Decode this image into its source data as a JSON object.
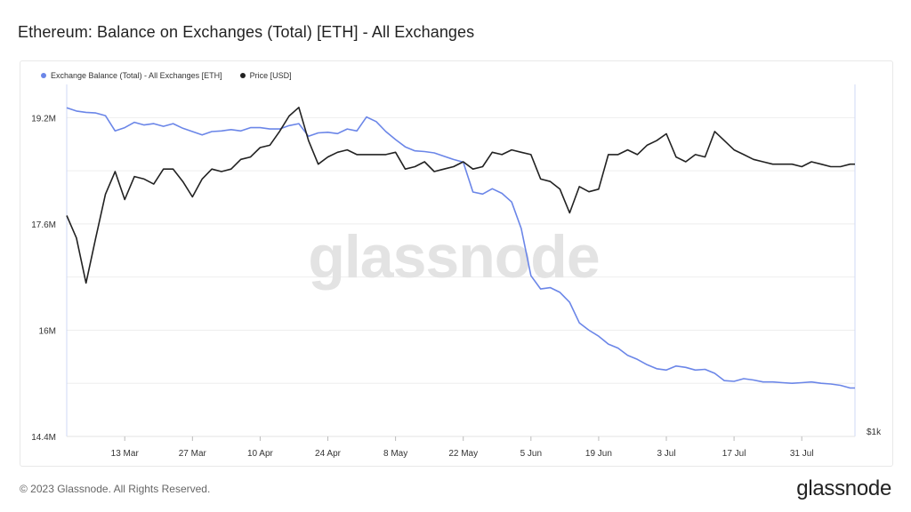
{
  "title": "Ethereum: Balance on Exchanges (Total) [ETH] - All Exchanges",
  "watermark": "glassnode",
  "footer": {
    "copyright": "© 2023 Glassnode. All Rights Reserved.",
    "logo": "glassnode"
  },
  "colors": {
    "balance": "#6b86e8",
    "price": "#222222",
    "grid": "#eeeeee"
  },
  "chart_data": {
    "type": "line",
    "title": "Ethereum: Balance on Exchanges (Total) [ETH] - All Exchanges",
    "legend_position": "top-left",
    "grid": true,
    "x_range": [
      "2023-03-01",
      "2023-08-11"
    ],
    "x_ticks": [
      "13 Mar",
      "27 Mar",
      "10 Apr",
      "24 Apr",
      "8 May",
      "22 May",
      "5 Jun",
      "19 Jun",
      "3 Jul",
      "17 Jul",
      "31 Jul"
    ],
    "y_left": {
      "ticks": [
        "19.2M",
        "17.6M",
        "16M",
        "14.4M"
      ],
      "tick_values": [
        19200000,
        17600000,
        16000000,
        14400000
      ],
      "range": [
        14400000,
        19700000
      ]
    },
    "y_right": {
      "ticks": [
        "$1k"
      ],
      "tick_values": [
        1000
      ],
      "scale": "log",
      "range": [
        1000,
        2200
      ]
    },
    "series": [
      {
        "name": "Exchange Balance (Total) - All Exchanges [ETH]",
        "axis": "left",
        "x": [
          "2023-03-01",
          "2023-03-03",
          "2023-03-05",
          "2023-03-07",
          "2023-03-09",
          "2023-03-11",
          "2023-03-13",
          "2023-03-15",
          "2023-03-17",
          "2023-03-19",
          "2023-03-21",
          "2023-03-23",
          "2023-03-25",
          "2023-03-27",
          "2023-03-29",
          "2023-03-31",
          "2023-04-02",
          "2023-04-04",
          "2023-04-06",
          "2023-04-08",
          "2023-04-10",
          "2023-04-12",
          "2023-04-14",
          "2023-04-16",
          "2023-04-18",
          "2023-04-20",
          "2023-04-22",
          "2023-04-24",
          "2023-04-26",
          "2023-04-28",
          "2023-04-30",
          "2023-05-02",
          "2023-05-04",
          "2023-05-06",
          "2023-05-08",
          "2023-05-10",
          "2023-05-12",
          "2023-05-14",
          "2023-05-16",
          "2023-05-18",
          "2023-05-20",
          "2023-05-22",
          "2023-05-24",
          "2023-05-26",
          "2023-05-28",
          "2023-05-30",
          "2023-06-01",
          "2023-06-03",
          "2023-06-05",
          "2023-06-07",
          "2023-06-09",
          "2023-06-11",
          "2023-06-13",
          "2023-06-15",
          "2023-06-17",
          "2023-06-19",
          "2023-06-21",
          "2023-06-23",
          "2023-06-25",
          "2023-06-27",
          "2023-06-29",
          "2023-07-01",
          "2023-07-03",
          "2023-07-05",
          "2023-07-07",
          "2023-07-09",
          "2023-07-11",
          "2023-07-13",
          "2023-07-15",
          "2023-07-17",
          "2023-07-19",
          "2023-07-21",
          "2023-07-23",
          "2023-07-25",
          "2023-07-27",
          "2023-07-29",
          "2023-07-31",
          "2023-08-02",
          "2023-08-04",
          "2023-08-06",
          "2023-08-08",
          "2023-08-10",
          "2023-08-11"
        ],
        "values": [
          19350000,
          19300000,
          19280000,
          19270000,
          19230000,
          19000000,
          19050000,
          19130000,
          19090000,
          19110000,
          19070000,
          19110000,
          19040000,
          18990000,
          18940000,
          18990000,
          19000000,
          19020000,
          19000000,
          19050000,
          19050000,
          19030000,
          19030000,
          19080000,
          19110000,
          18920000,
          18970000,
          18980000,
          18960000,
          19030000,
          19000000,
          19210000,
          19140000,
          18990000,
          18870000,
          18760000,
          18700000,
          18690000,
          18670000,
          18620000,
          18570000,
          18530000,
          18080000,
          18050000,
          18130000,
          18060000,
          17930000,
          17530000,
          16820000,
          16620000,
          16640000,
          16570000,
          16420000,
          16110000,
          16000000,
          15910000,
          15790000,
          15730000,
          15620000,
          15560000,
          15480000,
          15420000,
          15400000,
          15460000,
          15440000,
          15400000,
          15410000,
          15350000,
          15240000,
          15230000,
          15270000,
          15250000,
          15220000,
          15220000,
          15210000,
          15200000,
          15210000,
          15220000,
          15200000,
          15190000,
          15170000,
          15130000,
          15130000
        ]
      },
      {
        "name": "Price [USD]",
        "axis": "right",
        "x": [
          "2023-03-01",
          "2023-03-03",
          "2023-03-05",
          "2023-03-07",
          "2023-03-09",
          "2023-03-11",
          "2023-03-13",
          "2023-03-15",
          "2023-03-17",
          "2023-03-19",
          "2023-03-21",
          "2023-03-23",
          "2023-03-25",
          "2023-03-27",
          "2023-03-29",
          "2023-03-31",
          "2023-04-02",
          "2023-04-04",
          "2023-04-06",
          "2023-04-08",
          "2023-04-10",
          "2023-04-12",
          "2023-04-14",
          "2023-04-16",
          "2023-04-18",
          "2023-04-20",
          "2023-04-22",
          "2023-04-24",
          "2023-04-26",
          "2023-04-28",
          "2023-04-30",
          "2023-05-02",
          "2023-05-04",
          "2023-05-06",
          "2023-05-08",
          "2023-05-10",
          "2023-05-12",
          "2023-05-14",
          "2023-05-16",
          "2023-05-18",
          "2023-05-20",
          "2023-05-22",
          "2023-05-24",
          "2023-05-26",
          "2023-05-28",
          "2023-05-30",
          "2023-06-01",
          "2023-06-03",
          "2023-06-05",
          "2023-06-07",
          "2023-06-09",
          "2023-06-11",
          "2023-06-13",
          "2023-06-15",
          "2023-06-17",
          "2023-06-19",
          "2023-06-21",
          "2023-06-23",
          "2023-06-25",
          "2023-06-27",
          "2023-06-29",
          "2023-07-01",
          "2023-07-03",
          "2023-07-05",
          "2023-07-07",
          "2023-07-09",
          "2023-07-11",
          "2023-07-13",
          "2023-07-15",
          "2023-07-17",
          "2023-07-19",
          "2023-07-21",
          "2023-07-23",
          "2023-07-25",
          "2023-07-27",
          "2023-07-29",
          "2023-07-31",
          "2023-08-02",
          "2023-08-04",
          "2023-08-06",
          "2023-08-08",
          "2023-08-10",
          "2023-08-11"
        ],
        "values": [
          1640,
          1560,
          1410,
          1560,
          1720,
          1810,
          1700,
          1790,
          1780,
          1760,
          1820,
          1820,
          1770,
          1710,
          1780,
          1820,
          1810,
          1820,
          1860,
          1870,
          1910,
          1920,
          1980,
          2050,
          2090,
          1940,
          1840,
          1870,
          1890,
          1900,
          1880,
          1880,
          1880,
          1880,
          1890,
          1820,
          1830,
          1850,
          1810,
          1820,
          1830,
          1850,
          1820,
          1830,
          1890,
          1880,
          1900,
          1890,
          1880,
          1780,
          1770,
          1740,
          1650,
          1750,
          1730,
          1740,
          1880,
          1880,
          1900,
          1880,
          1920,
          1940,
          1970,
          1870,
          1850,
          1880,
          1870,
          1980,
          1940,
          1900,
          1880,
          1860,
          1850,
          1840,
          1840,
          1840,
          1830,
          1850,
          1840,
          1830,
          1830,
          1840,
          1840
        ]
      }
    ]
  }
}
